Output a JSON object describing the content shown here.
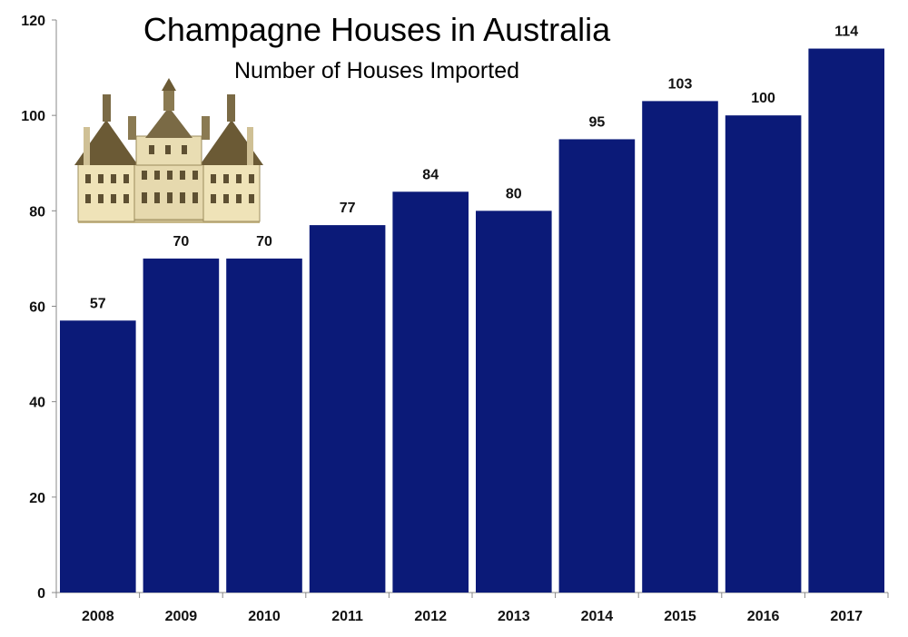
{
  "chart_data": {
    "type": "bar",
    "title": "Champagne Houses in Australia",
    "subtitle": "Number of Houses Imported",
    "xlabel": "",
    "ylabel": "",
    "categories": [
      "2008",
      "2009",
      "2010",
      "2011",
      "2012",
      "2013",
      "2014",
      "2015",
      "2016",
      "2017"
    ],
    "values": [
      57,
      70,
      70,
      77,
      84,
      80,
      95,
      103,
      100,
      114
    ],
    "data_labels": [
      "57",
      "70",
      "70",
      "77",
      "84",
      "80",
      "95",
      "103",
      "100",
      "114"
    ],
    "ylim": [
      0,
      120
    ],
    "yticks": [
      "0",
      "20",
      "40",
      "60",
      "80",
      "100",
      "120"
    ],
    "grid": false,
    "legend": "none",
    "bar_color": "#0b1a78",
    "decoration": "chateau-illustration"
  }
}
